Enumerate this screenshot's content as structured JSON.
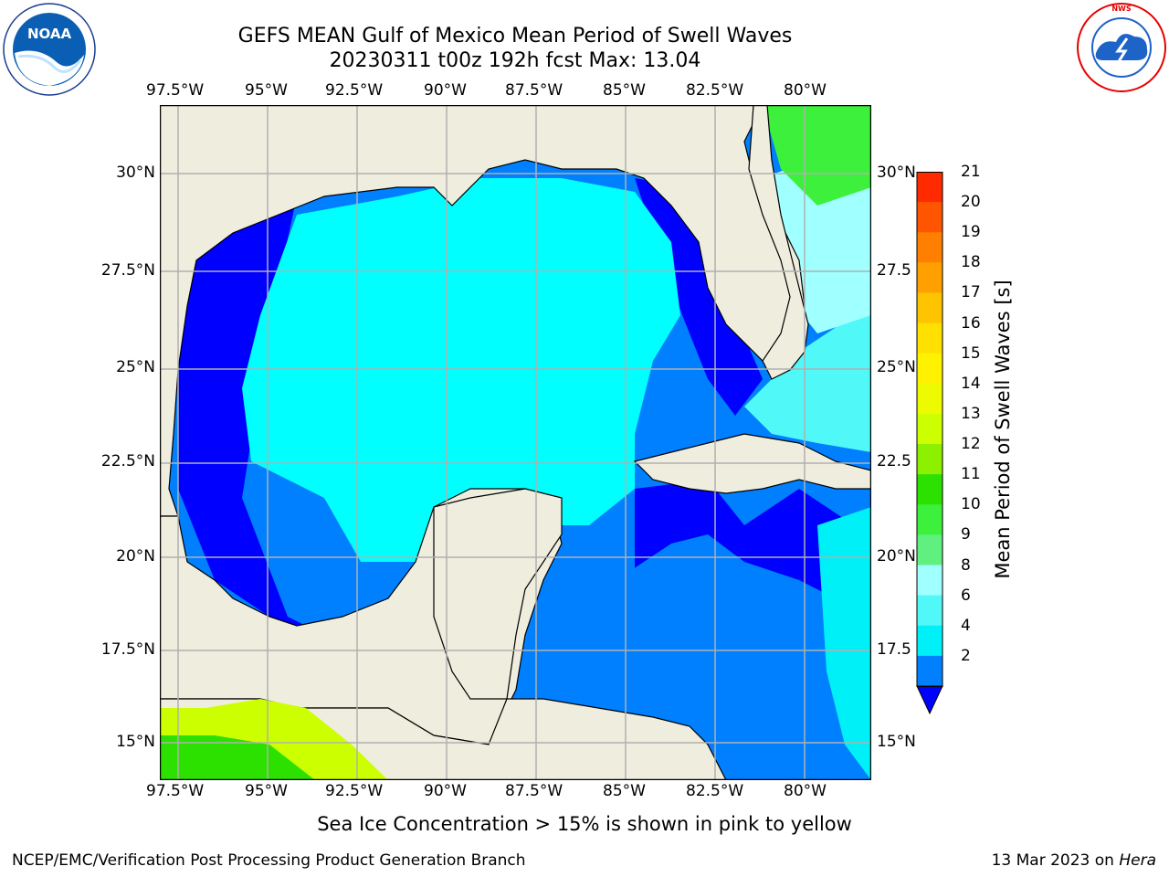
{
  "header": {
    "title": "GEFS MEAN Gulf of Mexico Mean Period of Swell Waves",
    "subtitle": "20230311 t00z 192h fcst   Max: 13.04"
  },
  "map": {
    "lon_labels": [
      "97.5°W",
      "95°W",
      "92.5°W",
      "90°W",
      "87.5°W",
      "85°W",
      "82.5°W",
      "80°W"
    ],
    "lat_labels_left": [
      "30°N",
      "27.5°N",
      "25°N",
      "22.5°N",
      "20°N",
      "17.5°N",
      "15°N"
    ],
    "lat_labels_right": [
      "30°N",
      "27.5",
      "25°N",
      "22.5",
      "20°N",
      "17.5",
      "15°N"
    ],
    "land_color": "#efedde",
    "grid_color": "#b0b0b0"
  },
  "colorbar": {
    "label": "Mean Period of Swell Waves [s]",
    "ticks": [
      "21",
      "20",
      "19",
      "18",
      "17",
      "16",
      "15",
      "14",
      "13",
      "12",
      "11",
      "10",
      "9",
      "8",
      "6",
      "4",
      "2"
    ],
    "colors": [
      "#ff2a00",
      "#ff5500",
      "#ff7f00",
      "#ffa000",
      "#ffc400",
      "#ffe000",
      "#fff200",
      "#eefa00",
      "#ccff00",
      "#8cf000",
      "#2ce000",
      "#3cf03c",
      "#60f080",
      "#a0ffff",
      "#50f8f8",
      "#00f0f8",
      "#0080ff"
    ],
    "extend_color": "#0000ff"
  },
  "logos": {
    "noaa": "NOAA",
    "noaa_ring": "NATIONAL OCEANIC AND ATMOSPHERIC ADMINISTRATION · U.S. DEPARTMENT OF COMMERCE",
    "nws_ring": "NATIONAL WEATHER SERVICE"
  },
  "note": "Sea Ice Concentration > 15% is shown in pink to yellow",
  "footer": {
    "left": "NCEP/EMC/Verification Post Processing Product Generation Branch",
    "right_date": "13 Mar 2023 on ",
    "right_host": "Hera"
  }
}
